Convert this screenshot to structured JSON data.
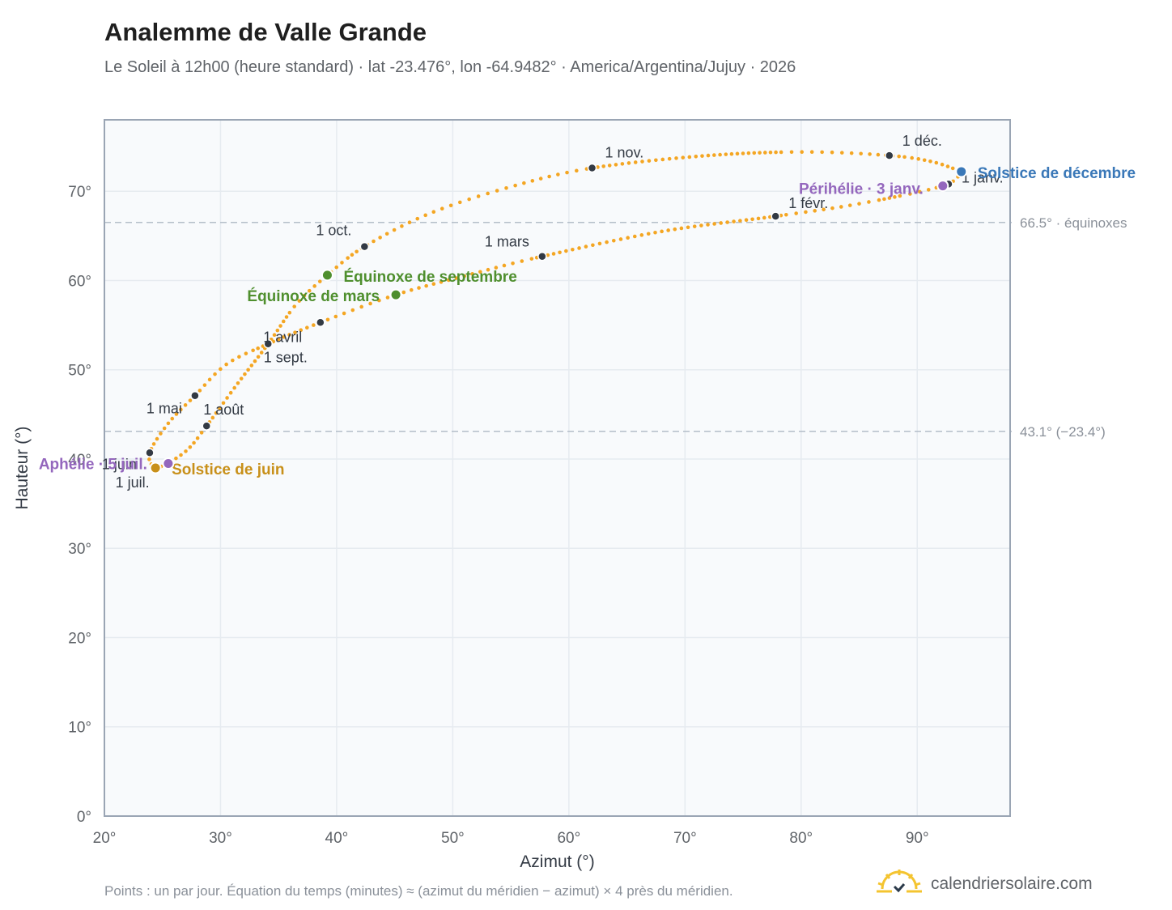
{
  "header": {
    "title": "Analemme de Valle Grande",
    "subtitle": "Le Soleil à 12h00 (heure standard) · lat -23.476°, lon -64.9482° · America/Argentina/Jujuy · 2026"
  },
  "footer": {
    "note": "Points : un par jour. Équation du temps (minutes) ≈ (azimut du méridien − azimut) × 4 près du méridien.",
    "brand": "calendriersolaire.com"
  },
  "colors": {
    "curve": "#f4a623",
    "month_marker": "#333a44",
    "equinox": "#4f8f2e",
    "june_solstice": "#c8901a",
    "december_solstice": "#3a78b8",
    "apsis": "#9467bd",
    "grid": "#e6ebf0",
    "plot_bg": "#f8fafc",
    "frame": "#9aa5b4",
    "reference_line": "#b4bec9"
  },
  "chart_data": {
    "type": "scatter",
    "xlabel": "Azimut (°)",
    "ylabel": "Hauteur (°)",
    "xlim": [
      20,
      98
    ],
    "ylim": [
      0,
      78
    ],
    "x_ticks": [
      20,
      30,
      40,
      50,
      60,
      70,
      80,
      90
    ],
    "y_ticks": [
      0,
      10,
      20,
      30,
      40,
      50,
      60,
      70
    ],
    "x_tick_labels": [
      "20°",
      "30°",
      "40°",
      "50°",
      "60°",
      "70°",
      "80°",
      "90°"
    ],
    "y_tick_labels": [
      "0°",
      "10°",
      "20°",
      "30°",
      "40°",
      "50°",
      "60°",
      "70°"
    ],
    "grid": true,
    "reference_lines": [
      {
        "y": 66.5,
        "label": "66.5° · équinoxes"
      },
      {
        "y": 43.1,
        "label": "43.1° (−23.4°)"
      }
    ],
    "series": [
      {
        "points": "un par jour",
        "curve_knots": [
          {
            "x": 93.8,
            "y": 72.2
          },
          {
            "x": 92.2,
            "y": 70.6
          },
          {
            "x": 85.0,
            "y": 68.6
          },
          {
            "x": 77.8,
            "y": 67.2
          },
          {
            "x": 68.0,
            "y": 65.5
          },
          {
            "x": 57.7,
            "y": 62.7
          },
          {
            "x": 51.0,
            "y": 60.5
          },
          {
            "x": 45.1,
            "y": 58.4
          },
          {
            "x": 38.6,
            "y": 55.3
          },
          {
            "x": 34.1,
            "y": 52.9
          },
          {
            "x": 30.5,
            "y": 50.6
          },
          {
            "x": 27.8,
            "y": 47.1
          },
          {
            "x": 25.5,
            "y": 44.0
          },
          {
            "x": 23.9,
            "y": 40.7
          },
          {
            "x": 24.3,
            "y": 39.1
          },
          {
            "x": 25.4,
            "y": 39.5
          },
          {
            "x": 27.2,
            "y": 41.1
          },
          {
            "x": 28.8,
            "y": 43.7
          },
          {
            "x": 31.5,
            "y": 48.5
          },
          {
            "x": 34.1,
            "y": 52.9
          },
          {
            "x": 36.5,
            "y": 57.3
          },
          {
            "x": 39.2,
            "y": 60.6
          },
          {
            "x": 42.4,
            "y": 63.8
          },
          {
            "x": 48.0,
            "y": 67.5
          },
          {
            "x": 55.0,
            "y": 70.5
          },
          {
            "x": 62.0,
            "y": 72.6
          },
          {
            "x": 72.0,
            "y": 74.0
          },
          {
            "x": 80.5,
            "y": 74.4
          },
          {
            "x": 87.6,
            "y": 74.0
          },
          {
            "x": 91.3,
            "y": 73.3
          },
          {
            "x": 93.8,
            "y": 72.2
          }
        ]
      }
    ],
    "month_markers": [
      {
        "label": "1 janv.",
        "x": 92.7,
        "y": 70.8
      },
      {
        "label": "1 févr.",
        "x": 77.8,
        "y": 67.2
      },
      {
        "label": "1 mars",
        "x": 57.7,
        "y": 62.7
      },
      {
        "label": "1 avril",
        "x": 34.1,
        "y": 52.9
      },
      {
        "label": "1 mai",
        "x": 27.8,
        "y": 47.1
      },
      {
        "label": "1 juin",
        "x": 23.9,
        "y": 40.7
      },
      {
        "label": "1 juil.",
        "x": 24.3,
        "y": 39.1
      },
      {
        "label": "1 août",
        "x": 28.8,
        "y": 43.7
      },
      {
        "label": "1 sept.",
        "x": 38.6,
        "y": 55.3
      },
      {
        "label": "1 oct.",
        "x": 42.4,
        "y": 63.8
      },
      {
        "label": "1 nov.",
        "x": 62.0,
        "y": 72.6
      },
      {
        "label": "1 déc.",
        "x": 87.6,
        "y": 74.0
      }
    ],
    "events": [
      {
        "label": "Solstice de décembre",
        "x": 93.8,
        "y": 72.2,
        "kind": "december_solstice"
      },
      {
        "label": "Périhélie · 3 janv.",
        "x": 92.2,
        "y": 70.6,
        "kind": "apsis"
      },
      {
        "label": "Équinoxe de septembre",
        "x": 39.2,
        "y": 60.6,
        "kind": "equinox"
      },
      {
        "label": "Équinoxe de mars",
        "x": 45.1,
        "y": 58.4,
        "kind": "equinox"
      },
      {
        "label": "Solstice de juin",
        "x": 24.4,
        "y": 39.0,
        "kind": "june_solstice"
      },
      {
        "label": "Aphélie · 5 juil.",
        "x": 25.5,
        "y": 39.5,
        "kind": "apsis"
      }
    ]
  }
}
